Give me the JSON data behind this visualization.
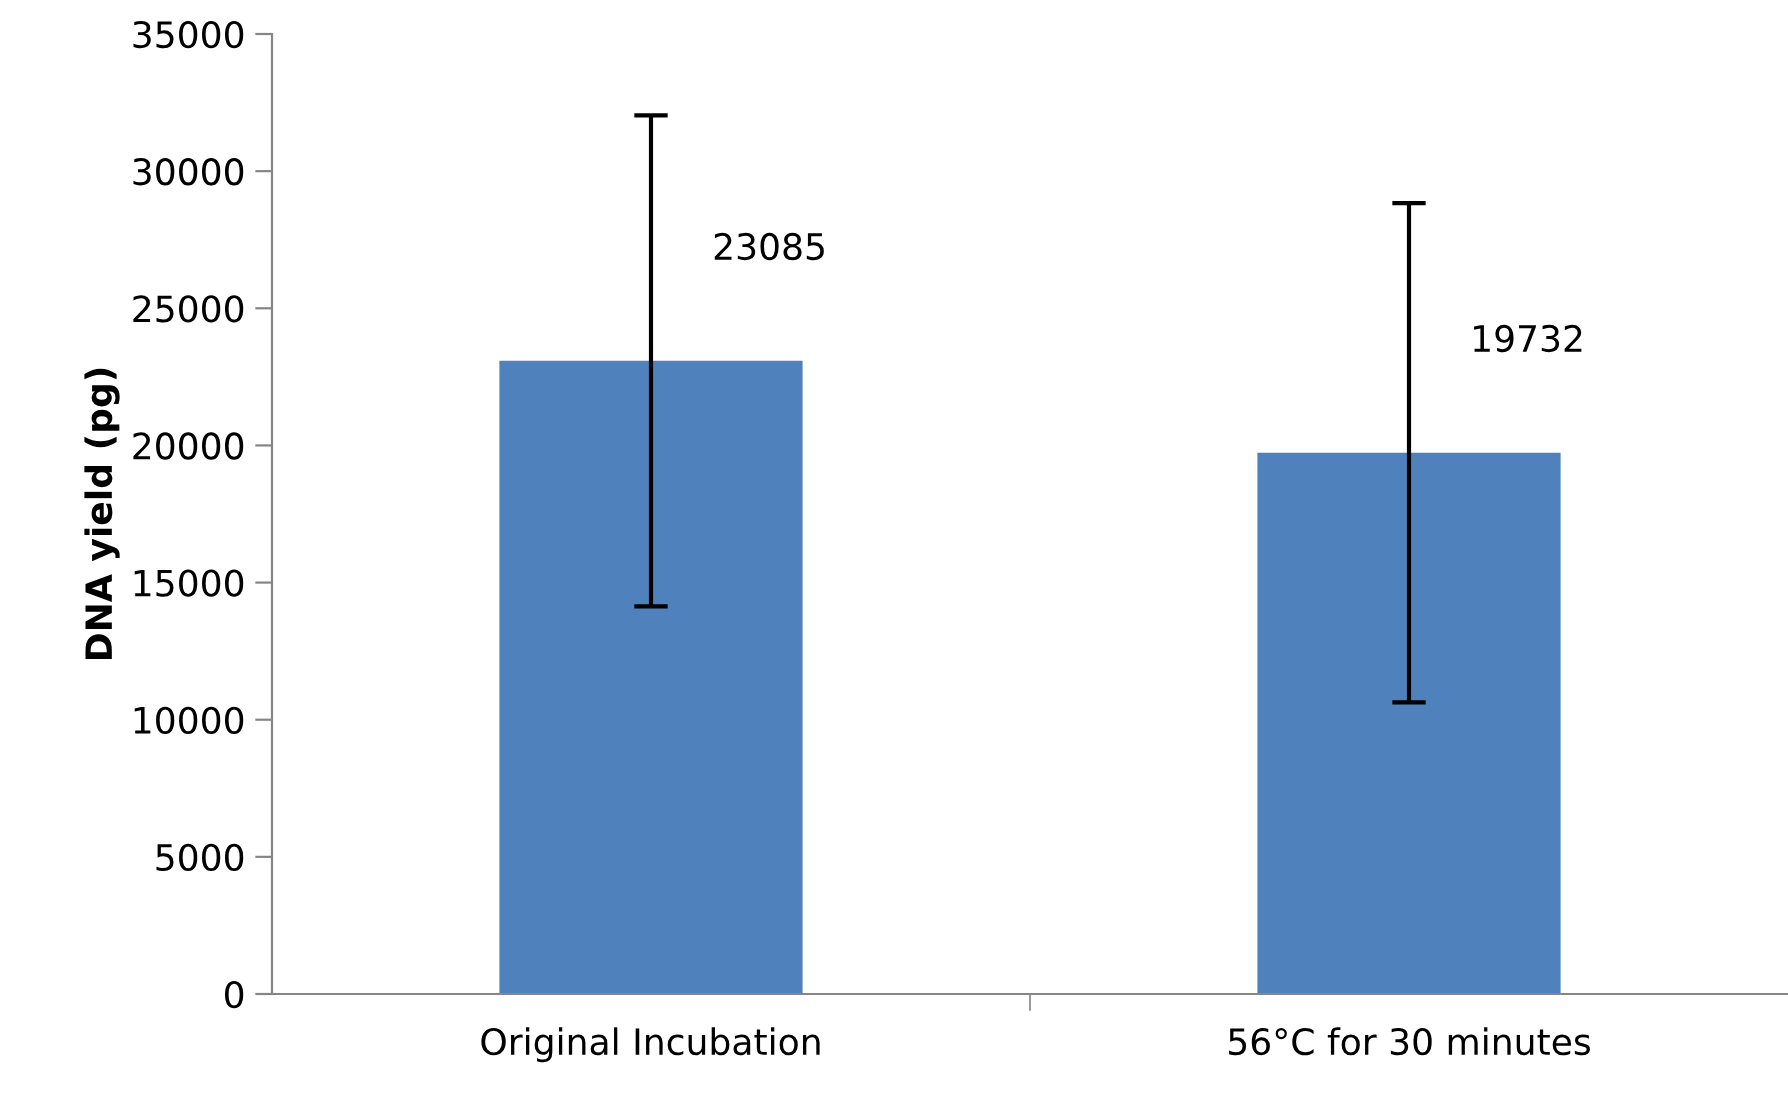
{
  "chart_data": {
    "type": "bar",
    "ylabel": "DNA yield (pg)",
    "categories": [
      "Original Incubation",
      "56°C for 30 minutes"
    ],
    "values": [
      23085,
      19732
    ],
    "errors": [
      8950,
      9100
    ],
    "color": "#4f81bd",
    "data_labels": true,
    "ylim": [
      0,
      35000
    ],
    "yticks": [
      0,
      5000,
      10000,
      15000,
      20000,
      25000,
      30000,
      35000
    ],
    "grid": false,
    "legend": false
  }
}
